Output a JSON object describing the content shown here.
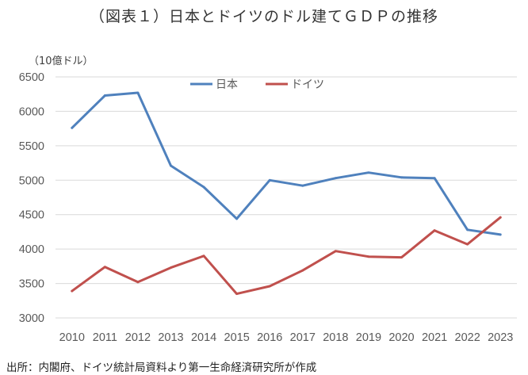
{
  "title": "（図表１）日本とドイツのドル建てＧＤＰの推移",
  "unit_label": "（10億ドル）",
  "source": "出所：内閣府、ドイツ統計局資料より第一生命経済研究所が作成",
  "chart_data": {
    "type": "line",
    "title": "（図表１）日本とドイツのドル建てＧＤＰの推移",
    "ylabel": "（10億ドル）",
    "xlabel": "",
    "x": [
      "2010",
      "2011",
      "2012",
      "2013",
      "2014",
      "2015",
      "2016",
      "2017",
      "2018",
      "2019",
      "2020",
      "2021",
      "2022",
      "2023"
    ],
    "ylim": [
      3000,
      6500
    ],
    "yticks": [
      "6500",
      "6000",
      "5500",
      "5000",
      "4500",
      "4000",
      "3500",
      "3000"
    ],
    "grid": true,
    "legend": "top-center",
    "series": [
      {
        "name": "日本",
        "color": "#4f81bd",
        "values": [
          5760,
          6230,
          6270,
          5210,
          4900,
          4440,
          5000,
          4920,
          5030,
          5110,
          5040,
          5030,
          4280,
          4210
        ]
      },
      {
        "name": "ドイツ",
        "color": "#c0504d",
        "values": [
          3390,
          3740,
          3520,
          3730,
          3900,
          3350,
          3460,
          3690,
          3970,
          3890,
          3880,
          4270,
          4070,
          4460
        ]
      }
    ]
  }
}
